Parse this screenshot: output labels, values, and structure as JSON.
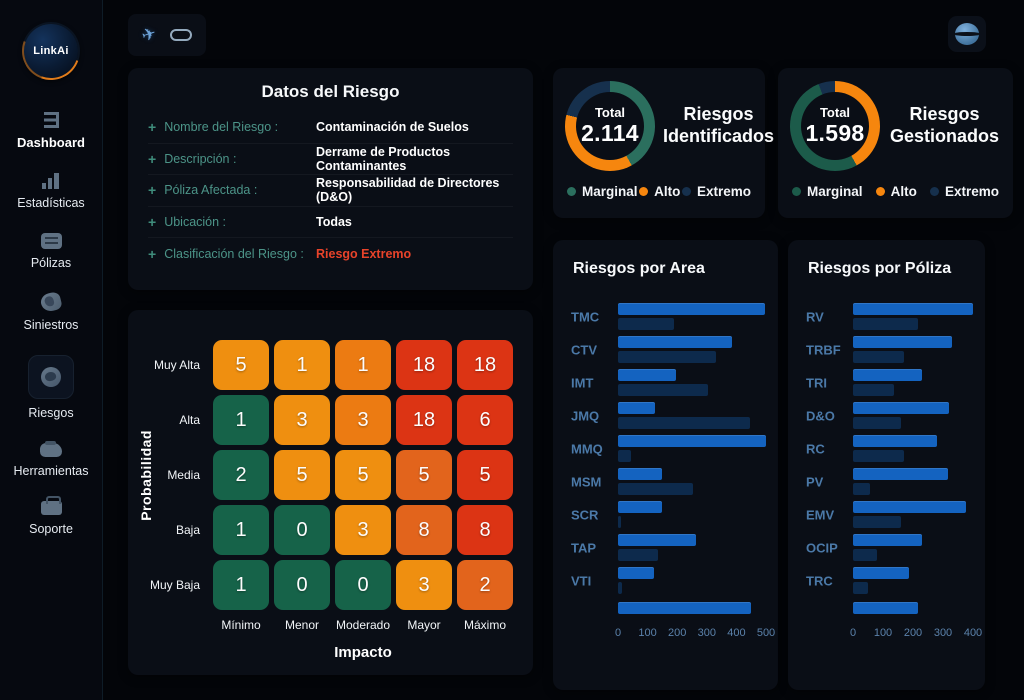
{
  "app": {
    "logo_text": "LinkAi"
  },
  "sidebar": {
    "items": [
      {
        "id": "dashboard",
        "label": "Dashboard",
        "icon": "dashboard-icon",
        "active": true,
        "boxed": false
      },
      {
        "id": "estadisticas",
        "label": "Estadísticas",
        "icon": "stats-icon",
        "active": false,
        "boxed": false
      },
      {
        "id": "polizas",
        "label": "Pólizas",
        "icon": "chat-icon",
        "active": false,
        "boxed": false
      },
      {
        "id": "siniestros",
        "label": "Siniestros",
        "icon": "claims-icon",
        "active": false,
        "boxed": false
      },
      {
        "id": "riesgos",
        "label": "Riesgos",
        "icon": "shield-icon",
        "active": false,
        "boxed": true
      },
      {
        "id": "herramientas",
        "label": "Herramientas",
        "icon": "tools-icon",
        "active": false,
        "boxed": false
      },
      {
        "id": "soporte",
        "label": "Soporte",
        "icon": "briefcase-icon",
        "active": false,
        "boxed": false
      }
    ]
  },
  "toolbar": {
    "icons": [
      {
        "name": "plane-icon"
      },
      {
        "name": "toggle-icon"
      }
    ]
  },
  "header": {
    "profile_icon": "globe-icon"
  },
  "risk_panel": {
    "title": "Datos del Riesgo",
    "fields": [
      {
        "label": "Nombre del Riesgo :",
        "value": "Contaminación de Suelos"
      },
      {
        "label": "Descripción :",
        "value": "Derrame de Productos Contaminantes"
      },
      {
        "label": "Póliza Afectada :",
        "value": "Responsabilidad de Directores (D&O)"
      },
      {
        "label": "Ubicación :",
        "value": "Todas"
      },
      {
        "label": "Clasificación del Riesgo :",
        "value": "Riesgo Extremo",
        "value_color": "#e8432a"
      }
    ]
  },
  "colors": {
    "accent_blue": "#1463c0",
    "dark_blue_bar": "#0d2a4c",
    "risk_green": "#166349",
    "risk_orange": "#ef8f10",
    "risk_mid_orange": "#ec7b12",
    "risk_dark_orange": "#e2641c",
    "risk_red": "#dc3414",
    "alert_red": "#e8432a",
    "teal_label": "#4c9488"
  },
  "chart_data": [
    {
      "id": "matrix",
      "type": "heatmap",
      "xlabel": "Impacto",
      "ylabel": "Probabilidad",
      "rows": [
        "Muy Alta",
        "Alta",
        "Media",
        "Baja",
        "Muy Baja"
      ],
      "cols": [
        "Mínimo",
        "Menor",
        "Moderado",
        "Mayor",
        "Máximo"
      ],
      "values": [
        [
          5,
          1,
          1,
          18,
          18
        ],
        [
          1,
          3,
          3,
          18,
          6
        ],
        [
          2,
          5,
          5,
          5,
          5
        ],
        [
          1,
          0,
          3,
          8,
          8
        ],
        [
          1,
          0,
          0,
          3,
          2
        ]
      ],
      "levels": [
        [
          2,
          2,
          3,
          5,
          5
        ],
        [
          1,
          2,
          3,
          5,
          5
        ],
        [
          1,
          2,
          2,
          4,
          5
        ],
        [
          1,
          1,
          2,
          4,
          5
        ],
        [
          1,
          1,
          1,
          2,
          4
        ]
      ],
      "level_colors": {
        "1": "#166349",
        "2": "#ef8f10",
        "3": "#ec7b12",
        "4": "#e2641c",
        "5": "#dc3414"
      }
    },
    {
      "id": "donut-identificados",
      "type": "pie",
      "title": "Riesgos Identificados",
      "center_label": "Total",
      "total": "2.114",
      "segments": [
        {
          "name": "Marginal",
          "pct": 42,
          "color": "#2b6f5e"
        },
        {
          "name": "Alto",
          "pct": 37,
          "color": "#f6860e"
        },
        {
          "name": "Extremo",
          "pct": 21,
          "color": "#16304d"
        }
      ],
      "legend": [
        {
          "label": "Marginal",
          "color": "#2b6f5e"
        },
        {
          "label": "Alto",
          "color": "#f6860e"
        },
        {
          "label": "Extremo",
          "color": "#16304d"
        }
      ]
    },
    {
      "id": "donut-gestionados",
      "type": "pie",
      "title": "Riesgos Gestionados",
      "center_label": "Total",
      "total": "1.598",
      "segments": [
        {
          "name": "Alto",
          "pct": 42,
          "color": "#f6860e"
        },
        {
          "name": "Marginal",
          "pct": 52,
          "color": "#1c5b4a"
        },
        {
          "name": "Extremo",
          "pct": 6,
          "color": "#16304d"
        }
      ],
      "legend": [
        {
          "label": "Marginal",
          "color": "#1c5b4a"
        },
        {
          "label": "Alto",
          "color": "#f6860e"
        },
        {
          "label": "Extremo",
          "color": "#16304d"
        }
      ]
    },
    {
      "id": "bar-area",
      "type": "bar",
      "title": "Riesgos por Area",
      "categories": [
        "TMC",
        "CTV",
        "IMT",
        "JMQ",
        "MMQ",
        "MSM",
        "SCR",
        "TAP",
        "VTI",
        ""
      ],
      "series": [
        {
          "name": "primary",
          "values": [
            495,
            385,
            195,
            125,
            500,
            150,
            150,
            265,
            120,
            450
          ]
        },
        {
          "name": "secondary",
          "values": [
            190,
            330,
            305,
            445,
            45,
            255,
            10,
            135,
            15,
            null
          ]
        }
      ],
      "axis": {
        "max": 500,
        "ticks": [
          0,
          100,
          200,
          300,
          400,
          500
        ]
      }
    },
    {
      "id": "bar-poliza",
      "type": "bar",
      "title": "Riesgos por Póliza",
      "categories": [
        "RV",
        "TRBF",
        "TRI",
        "D&O",
        "RC",
        "PV",
        "EMV",
        "OCIP",
        "TRC",
        ""
      ],
      "series": [
        {
          "name": "primary",
          "values": [
            400,
            330,
            230,
            320,
            280,
            315,
            375,
            230,
            185,
            215
          ]
        },
        {
          "name": "secondary",
          "values": [
            215,
            170,
            135,
            160,
            170,
            55,
            160,
            80,
            50,
            null
          ]
        }
      ],
      "axis": {
        "max": 400,
        "ticks": [
          0,
          100,
          200,
          300,
          400
        ]
      }
    }
  ]
}
